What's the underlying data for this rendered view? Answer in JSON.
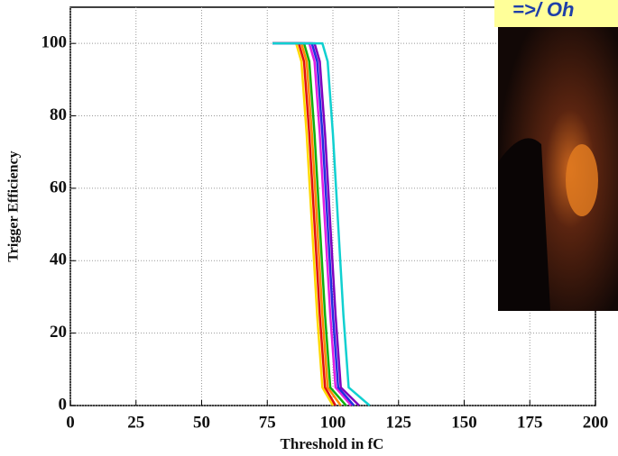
{
  "chart_data": {
    "type": "line",
    "xlabel": "Threshold in fC",
    "ylabel": "Trigger Efficiency",
    "xlim": [
      0,
      200
    ],
    "xticks": [
      0,
      25,
      50,
      75,
      100,
      125,
      150,
      175,
      200
    ],
    "ylim": [
      0,
      110
    ],
    "yticks": [
      0,
      20,
      40,
      60,
      80,
      100
    ],
    "grid": true,
    "series": [
      {
        "color": "#ffd800",
        "x": [
          77,
          86,
          88,
          90,
          92,
          94,
          96,
          100
        ],
        "values": [
          100,
          100,
          95,
          75,
          50,
          25,
          5,
          0
        ]
      },
      {
        "color": "#e01010",
        "x": [
          77,
          87,
          89,
          91,
          93,
          95,
          97,
          101
        ],
        "values": [
          100,
          100,
          95,
          75,
          50,
          25,
          5,
          0
        ]
      },
      {
        "color": "#ff8800",
        "x": [
          77,
          88,
          90,
          92,
          94,
          96,
          98,
          103
        ],
        "values": [
          100,
          100,
          95,
          75,
          50,
          25,
          5,
          0
        ]
      },
      {
        "color": "#10b010",
        "x": [
          77,
          89,
          91,
          93,
          95,
          97,
          99,
          105
        ],
        "values": [
          100,
          100,
          95,
          75,
          50,
          25,
          5,
          0
        ]
      },
      {
        "color": "#e020e0",
        "x": [
          77,
          91,
          93,
          95,
          97,
          99,
          101,
          107
        ],
        "values": [
          100,
          100,
          95,
          75,
          50,
          25,
          5,
          0
        ]
      },
      {
        "color": "#2030e0",
        "x": [
          77,
          92,
          94,
          96,
          98,
          100,
          102,
          108
        ],
        "values": [
          100,
          100,
          95,
          75,
          50,
          25,
          5,
          0
        ]
      },
      {
        "color": "#8000c0",
        "x": [
          77,
          93,
          95,
          97,
          99,
          101,
          103,
          110
        ],
        "values": [
          100,
          100,
          95,
          75,
          50,
          25,
          5,
          0
        ]
      },
      {
        "color": "#10d0d0",
        "x": [
          77,
          96,
          98,
          100,
          102,
          104,
          106,
          114
        ],
        "values": [
          100,
          100,
          95,
          75,
          50,
          25,
          5,
          0
        ]
      }
    ],
    "annotation": "=>/ Oh"
  }
}
